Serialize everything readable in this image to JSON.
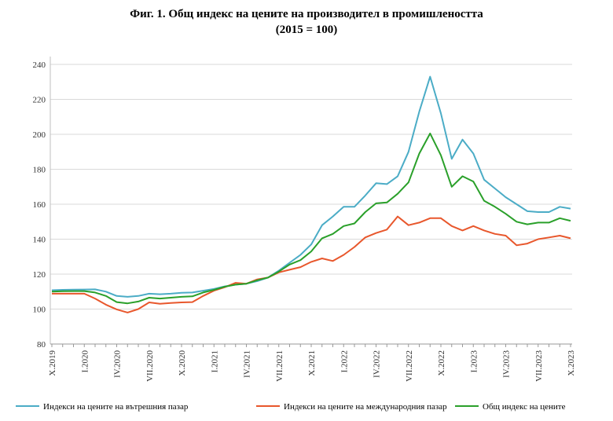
{
  "chart_data": {
    "type": "line",
    "title": "Фиг. 1. Общ индекс на цените на производител в промишлеността",
    "subtitle": "(2015 = 100)",
    "ylim": [
      80,
      240
    ],
    "yticks": [
      80,
      100,
      120,
      140,
      160,
      180,
      200,
      220,
      240
    ],
    "grid": "horizontal",
    "legend": "bottom",
    "x_tick_labels": [
      "X.2019",
      "I.2020",
      "IV.2020",
      "VII.2020",
      "X.2020",
      "I.2021",
      "IV.2021",
      "VII.2021",
      "X.2021",
      "I.2022",
      "IV.2022",
      "VII.2022",
      "X.2022",
      "I.2023",
      "IV.2023",
      "VII.2023",
      "X.2023"
    ],
    "x": [
      "X.2019",
      "XI.2019",
      "XII.2019",
      "I.2020",
      "II.2020",
      "III.2020",
      "IV.2020",
      "V.2020",
      "VI.2020",
      "VII.2020",
      "VIII.2020",
      "IX.2020",
      "X.2020",
      "XI.2020",
      "XII.2020",
      "I.2021",
      "II.2021",
      "III.2021",
      "IV.2021",
      "V.2021",
      "VI.2021",
      "VII.2021",
      "VIII.2021",
      "IX.2021",
      "X.2021",
      "XI.2021",
      "XII.2021",
      "I.2022",
      "II.2022",
      "III.2022",
      "IV.2022",
      "V.2022",
      "VI.2022",
      "VII.2022",
      "VIII.2022",
      "IX.2022",
      "X.2022",
      "XI.2022",
      "XII.2022",
      "I.2023",
      "II.2023",
      "III.2023",
      "IV.2023",
      "V.2023",
      "VI.2023",
      "VII.2023",
      "VIII.2023",
      "IX.2023",
      "X.2023"
    ],
    "series": [
      {
        "name": "Индекси на цените на вътрешния пазар",
        "color": "#4bacc6",
        "values": [
          110.8,
          111.0,
          111.1,
          111.2,
          111.3,
          110.0,
          107.5,
          107.0,
          107.5,
          108.8,
          108.5,
          108.8,
          109.3,
          109.5,
          110.5,
          111.5,
          113.0,
          114.0,
          114.5,
          116.0,
          118.0,
          122.0,
          126.5,
          131.0,
          137.0,
          148.0,
          153.0,
          158.5,
          158.5,
          165.0,
          172.0,
          171.5,
          176.0,
          190.0,
          213.0,
          233.0,
          212.0,
          186.0,
          197.0,
          189.0,
          174.0,
          169.0,
          164.0,
          160.0,
          156.0,
          155.5,
          155.5,
          158.5,
          157.5
        ]
      },
      {
        "name": "Индекси на цените на международния пазар",
        "color": "#e8572c",
        "values": [
          108.8,
          108.8,
          108.8,
          108.8,
          106.0,
          102.5,
          99.8,
          98.0,
          100.0,
          103.8,
          103.0,
          103.5,
          103.8,
          104.0,
          107.5,
          110.5,
          112.5,
          115.0,
          114.5,
          117.0,
          118.0,
          121.0,
          122.5,
          124.0,
          127.0,
          129.0,
          127.5,
          131.0,
          135.5,
          141.0,
          143.5,
          145.5,
          153.0,
          148.0,
          149.5,
          152.0,
          152.0,
          147.5,
          145.0,
          147.5,
          145.0,
          143.0,
          142.0,
          136.5,
          137.5,
          140.0,
          141.0,
          142.0,
          140.5
        ]
      },
      {
        "name": "Общ индекс на цените",
        "color": "#2aa02a",
        "values": [
          110.0,
          110.2,
          110.3,
          110.3,
          109.5,
          107.5,
          104.0,
          103.3,
          104.3,
          106.5,
          106.0,
          106.5,
          107.0,
          107.3,
          109.5,
          111.0,
          112.8,
          114.0,
          114.5,
          116.5,
          118.0,
          121.5,
          125.5,
          128.0,
          133.0,
          140.5,
          143.0,
          147.5,
          149.0,
          155.5,
          160.5,
          161.0,
          166.0,
          172.5,
          189.0,
          200.5,
          188.0,
          170.0,
          176.0,
          173.0,
          162.0,
          158.5,
          154.5,
          150.0,
          148.5,
          149.5,
          149.5,
          152.0,
          150.5
        ]
      }
    ]
  }
}
